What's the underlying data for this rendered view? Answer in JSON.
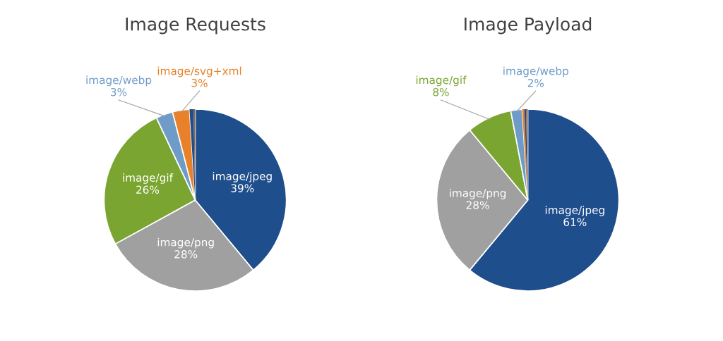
{
  "chart_data": [
    {
      "type": "pie",
      "title": "Image Requests",
      "categories": [
        "image/jpeg",
        "image/png",
        "image/gif",
        "image/webp",
        "image/svg+xml",
        null,
        null
      ],
      "values": [
        39,
        28,
        26,
        3,
        3,
        0.7,
        0.3
      ],
      "value_labels": [
        "39%",
        "28%",
        "26%",
        "3%",
        "3%",
        null,
        null
      ],
      "colors": [
        "#1f4e8c",
        "#a0a0a0",
        "#7aa531",
        "#6f9bc8",
        "#e8822a",
        "#234a8a",
        "#7a6a5a"
      ]
    },
    {
      "type": "pie",
      "title": "Image Payload",
      "categories": [
        "image/jpeg",
        "image/png",
        "image/gif",
        "image/webp",
        null,
        null,
        null
      ],
      "values": [
        61,
        28,
        8,
        2,
        0.4,
        0.3,
        0.3
      ],
      "value_labels": [
        "61%",
        "28%",
        "8%",
        "2%",
        null,
        null,
        null
      ],
      "colors": [
        "#1f4e8c",
        "#a0a0a0",
        "#7aa531",
        "#6f9bc8",
        "#e8822a",
        "#234a8a",
        "#7a6a5a"
      ]
    }
  ]
}
